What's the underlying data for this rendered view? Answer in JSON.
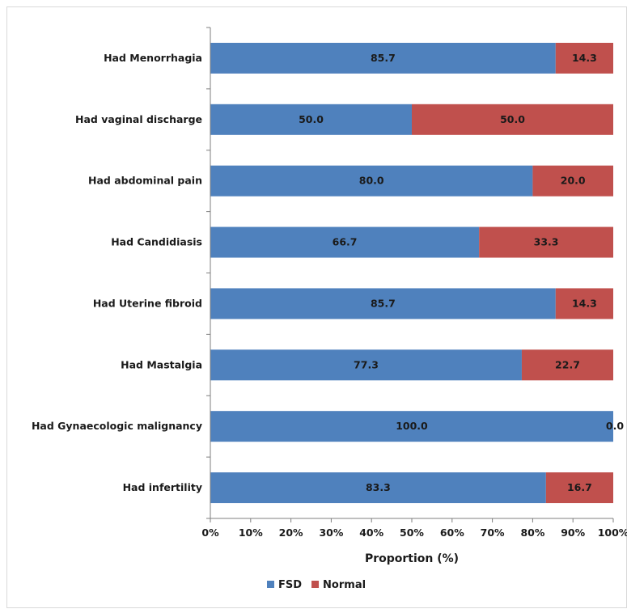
{
  "chart_data": {
    "type": "bar",
    "orientation": "horizontal",
    "stacked": true,
    "categories": [
      "Had Menorrhagia",
      "Had vaginal discharge",
      "Had abdominal pain",
      "Had Candidiasis",
      "Had Uterine fibroid",
      "Had Mastalgia",
      "Had Gynaecologic malignancy",
      "Had infertility"
    ],
    "series": [
      {
        "name": "FSD",
        "color": "#4f81bd",
        "values": [
          85.7,
          50.0,
          80.0,
          66.7,
          85.7,
          77.3,
          100.0,
          83.3
        ]
      },
      {
        "name": "Normal",
        "color": "#c0504d",
        "values": [
          14.3,
          50.0,
          20.0,
          33.3,
          14.3,
          22.7,
          0.0,
          16.7
        ]
      }
    ],
    "data_labels": [
      [
        "85.7",
        "50.0",
        "80.0",
        "66.7",
        "85.7",
        "77.3",
        "100.0",
        "83.3"
      ],
      [
        "14.3",
        "50.0",
        "20.0",
        "33.3",
        "14.3",
        "22.7",
        "0.0",
        "16.7"
      ]
    ],
    "x_ticks": [
      "0%",
      "10%",
      "20%",
      "30%",
      "40%",
      "50%",
      "60%",
      "70%",
      "80%",
      "90%",
      "100%"
    ],
    "xlim": [
      0,
      100
    ],
    "xlabel": "Proportion (%)",
    "ylabel": "",
    "title": "",
    "grid": false,
    "legend_position": "bottom"
  }
}
